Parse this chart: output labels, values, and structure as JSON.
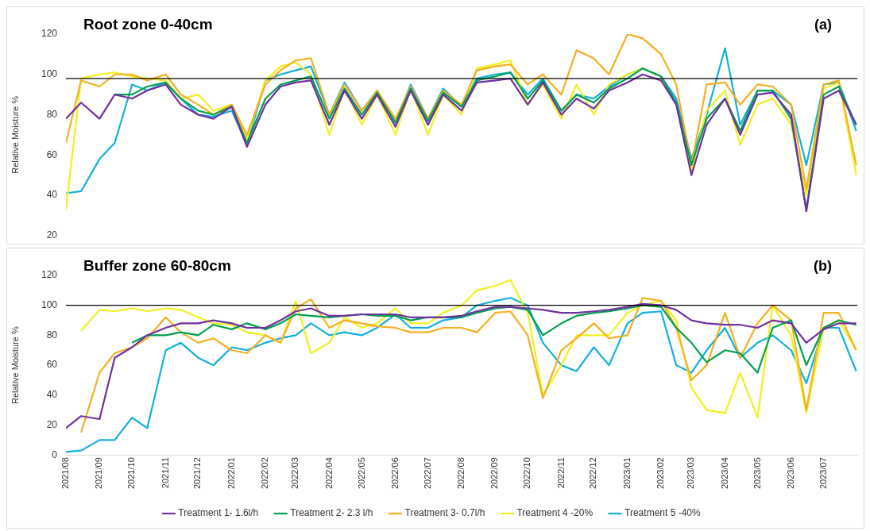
{
  "chart_data": [
    {
      "type": "line",
      "title": "Root zone 0-40cm",
      "ylabel": "Relative Moisture %",
      "annotations": [
        "(a)"
      ],
      "x": [
        "2021-08-01",
        "2021-08-15",
        "2021-09-01",
        "2021-09-15",
        "2021-10-01",
        "2021-10-15",
        "2021-11-01",
        "2021-11-15",
        "2021-12-01",
        "2021-12-15",
        "2022-01-01",
        "2022-01-15",
        "2022-02-01",
        "2022-02-15",
        "2022-03-01",
        "2022-03-15",
        "2022-04-01",
        "2022-04-15",
        "2022-05-01",
        "2022-05-15",
        "2022-06-01",
        "2022-06-15",
        "2022-07-01",
        "2022-07-15",
        "2022-08-01",
        "2022-08-15",
        "2022-09-01",
        "2022-09-15",
        "2022-10-01",
        "2022-10-15",
        "2022-11-01",
        "2022-11-15",
        "2022-12-01",
        "2022-12-15",
        "2023-01-01",
        "2023-01-15",
        "2023-02-01",
        "2023-02-15",
        "2023-03-01",
        "2023-03-15",
        "2023-04-01",
        "2023-04-15",
        "2023-05-01",
        "2023-05-15",
        "2023-06-01",
        "2023-06-15",
        "2023-07-01",
        "2023-07-15",
        "2023-07-31"
      ],
      "series": [
        {
          "color": "#7030a0",
          "values": [
            78,
            86,
            78,
            90,
            88,
            92,
            95,
            85,
            80,
            78,
            84,
            64,
            85,
            94,
            96,
            97,
            75,
            92,
            78,
            90,
            74,
            92,
            75,
            90,
            82,
            96,
            97,
            98,
            85,
            96,
            80,
            88,
            83,
            92,
            96,
            100,
            97,
            85,
            50,
            75,
            88,
            70,
            90,
            91,
            80,
            32,
            88,
            92,
            75
          ]
        },
        {
          "color": "#00a050",
          "values": [
            null,
            null,
            null,
            90,
            90,
            94,
            96,
            88,
            82,
            80,
            84,
            66,
            88,
            95,
            97,
            99,
            78,
            93,
            80,
            91,
            76,
            93,
            77,
            91,
            84,
            97,
            99,
            101,
            88,
            97,
            82,
            90,
            86,
            93,
            98,
            103,
            99,
            86,
            55,
            78,
            88,
            72,
            92,
            92,
            78,
            33,
            90,
            94,
            75
          ]
        },
        {
          "color": "#f5b020",
          "values": [
            66,
            97,
            94,
            100,
            100,
            97,
            100,
            90,
            85,
            80,
            85,
            70,
            95,
            102,
            107,
            108,
            80,
            95,
            82,
            92,
            78,
            94,
            78,
            92,
            85,
            102,
            104,
            105,
            95,
            100,
            90,
            112,
            108,
            100,
            120,
            118,
            110,
            95,
            55,
            95,
            96,
            85,
            95,
            94,
            85,
            43,
            95,
            97,
            55
          ]
        },
        {
          "color": "#f0f020",
          "values": [
            33,
            98,
            100,
            101,
            99,
            98,
            97,
            88,
            90,
            82,
            85,
            68,
            97,
            104,
            106,
            100,
            70,
            93,
            75,
            90,
            70,
            93,
            70,
            90,
            80,
            103,
            105,
            107,
            85,
            95,
            78,
            95,
            80,
            95,
            100,
            103,
            99,
            85,
            52,
            82,
            92,
            65,
            85,
            88,
            75,
            40,
            93,
            96,
            50
          ]
        },
        {
          "color": "#10b0e0",
          "values": [
            41,
            42,
            58,
            66,
            95,
            92,
            96,
            88,
            80,
            79,
            82,
            65,
            97,
            100,
            102,
            104,
            80,
            96,
            82,
            92,
            76,
            95,
            78,
            93,
            84,
            98,
            100,
            101,
            90,
            98,
            82,
            90,
            88,
            94,
            100,
            103,
            99,
            88,
            58,
            80,
            113,
            75,
            92,
            92,
            85,
            55,
            95,
            96,
            72
          ]
        }
      ],
      "xlim": [
        "2021-08-01",
        "2023-08-01"
      ],
      "ylim": [
        20,
        120
      ],
      "yticks": [
        20,
        40,
        60,
        80,
        100,
        120
      ],
      "tick_labels": "y",
      "grid": false,
      "legend": false,
      "marker": "none",
      "ref_lines": [
        {
          "axis": "y",
          "value": 98,
          "color": "#000000"
        }
      ]
    },
    {
      "type": "line",
      "title": "Buffer zone 60-80cm",
      "ylabel": "Relative Moisture %",
      "annotations": [
        "(b)"
      ],
      "x": [
        "2021-08-01",
        "2021-08-15",
        "2021-09-01",
        "2021-09-15",
        "2021-10-01",
        "2021-10-15",
        "2021-11-01",
        "2021-11-15",
        "2021-12-01",
        "2021-12-15",
        "2022-01-01",
        "2022-01-15",
        "2022-02-01",
        "2022-02-15",
        "2022-03-01",
        "2022-03-15",
        "2022-04-01",
        "2022-04-15",
        "2022-05-01",
        "2022-05-15",
        "2022-06-01",
        "2022-06-15",
        "2022-07-01",
        "2022-07-15",
        "2022-08-01",
        "2022-08-15",
        "2022-09-01",
        "2022-09-15",
        "2022-10-01",
        "2022-10-15",
        "2022-11-01",
        "2022-11-15",
        "2022-12-01",
        "2022-12-15",
        "2023-01-01",
        "2023-01-15",
        "2023-02-01",
        "2023-02-15",
        "2023-03-01",
        "2023-03-15",
        "2023-04-01",
        "2023-04-15",
        "2023-05-01",
        "2023-05-15",
        "2023-06-01",
        "2023-06-15",
        "2023-07-01",
        "2023-07-15",
        "2023-07-31"
      ],
      "series": [
        {
          "name": "Treatment 1- 1.6l/h",
          "color": "#7030a0",
          "values": [
            18,
            26,
            24,
            65,
            72,
            80,
            85,
            88,
            88,
            90,
            88,
            85,
            85,
            90,
            96,
            98,
            93,
            93,
            94,
            94,
            94,
            92,
            92,
            92,
            93,
            96,
            99,
            99,
            98,
            97,
            95,
            95,
            96,
            97,
            99,
            101,
            100,
            97,
            90,
            88,
            87,
            87,
            85,
            90,
            88,
            75,
            84,
            88,
            88
          ]
        },
        {
          "name": "Treatment 2- 2.3 l/h",
          "color": "#00a050",
          "values": [
            null,
            null,
            null,
            null,
            75,
            80,
            80,
            82,
            80,
            87,
            84,
            88,
            84,
            88,
            94,
            93,
            92,
            93,
            94,
            93,
            93,
            90,
            92,
            92,
            92,
            95,
            98,
            99,
            97,
            80,
            88,
            93,
            95,
            96,
            98,
            100,
            99,
            85,
            75,
            62,
            70,
            68,
            55,
            85,
            90,
            60,
            85,
            90,
            87
          ]
        },
        {
          "name": "Treatment 3- 0.7l/h",
          "color": "#f5b020",
          "values": [
            null,
            15,
            55,
            68,
            72,
            78,
            92,
            82,
            75,
            78,
            70,
            68,
            80,
            75,
            98,
            104,
            85,
            90,
            88,
            86,
            85,
            82,
            82,
            85,
            85,
            82,
            95,
            96,
            80,
            38,
            70,
            78,
            88,
            78,
            80,
            105,
            103,
            85,
            50,
            60,
            95,
            65,
            88,
            100,
            90,
            30,
            95,
            95,
            70
          ]
        },
        {
          "name": "Treatment 4 -20%",
          "color": "#f0f020",
          "values": [
            null,
            83,
            97,
            96,
            98,
            96,
            98,
            97,
            92,
            88,
            87,
            82,
            80,
            75,
            103,
            68,
            75,
            92,
            85,
            88,
            98,
            88,
            88,
            95,
            100,
            110,
            113,
            117,
            95,
            40,
            60,
            80,
            80,
            80,
            95,
            100,
            103,
            90,
            45,
            30,
            28,
            55,
            25,
            100,
            80,
            28,
            85,
            90,
            70
          ]
        },
        {
          "name": "Treatment 5 -40%",
          "color": "#10b0e0",
          "values": [
            2,
            3,
            10,
            10,
            25,
            18,
            70,
            75,
            65,
            60,
            72,
            70,
            75,
            78,
            80,
            88,
            80,
            82,
            80,
            85,
            94,
            85,
            85,
            90,
            92,
            100,
            103,
            105,
            100,
            75,
            60,
            56,
            72,
            60,
            88,
            95,
            96,
            60,
            55,
            70,
            85,
            65,
            75,
            80,
            70,
            48,
            85,
            85,
            56
          ]
        }
      ],
      "xlim": [
        "2021-08-01",
        "2023-08-01"
      ],
      "xticks": [
        {
          "value": "2021-08",
          "label": "2021/08"
        },
        {
          "value": "2021-09",
          "label": "2021/09"
        },
        {
          "value": "2021-10",
          "label": "2021/10"
        },
        {
          "value": "2021-11",
          "label": "2021/11"
        },
        {
          "value": "2021-12",
          "label": "2021/12"
        },
        {
          "value": "2022-01",
          "label": "2022/01"
        },
        {
          "value": "2022-02",
          "label": "2022/02"
        },
        {
          "value": "2022-03",
          "label": "2022/03"
        },
        {
          "value": "2022-04",
          "label": "2022/04"
        },
        {
          "value": "2022-05",
          "label": "2022/05"
        },
        {
          "value": "2022-06",
          "label": "2022/06"
        },
        {
          "value": "2022-07",
          "label": "2022/07"
        },
        {
          "value": "2022-08",
          "label": "2022/08"
        },
        {
          "value": "2022-09",
          "label": "2022/09"
        },
        {
          "value": "2022-10",
          "label": "2022/10"
        },
        {
          "value": "2022-11",
          "label": "2022/11"
        },
        {
          "value": "2022-12",
          "label": "2022/12"
        },
        {
          "value": "2023-01",
          "label": "2023/01"
        },
        {
          "value": "2023-02",
          "label": "2023/02"
        },
        {
          "value": "2023-03",
          "label": "2023/03"
        },
        {
          "value": "2023-04",
          "label": "2023/04"
        },
        {
          "value": "2023-05",
          "label": "2023/05"
        },
        {
          "value": "2023-06",
          "label": "2023/06"
        },
        {
          "value": "2023-07",
          "label": "2023/07"
        }
      ],
      "ylim": [
        0,
        120
      ],
      "yticks": [
        0,
        20,
        40,
        60,
        80,
        100,
        120
      ],
      "grid": false,
      "legend": "bottom",
      "marker": "none",
      "ref_lines": [
        {
          "axis": "y",
          "value": 100,
          "color": "#000000"
        }
      ]
    }
  ]
}
